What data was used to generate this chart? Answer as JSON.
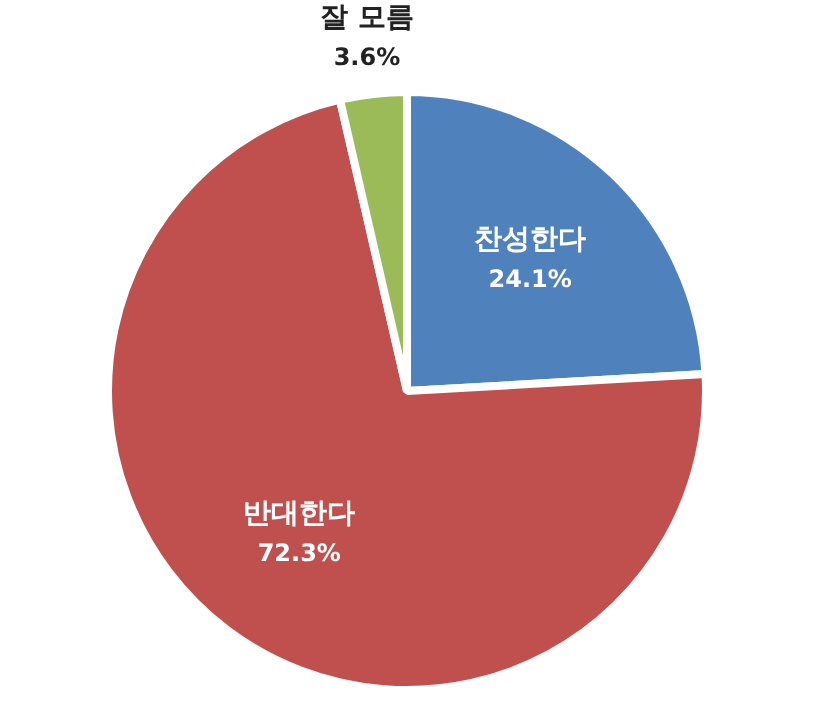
{
  "chart_data": {
    "type": "pie",
    "categories": [
      "찬성한다",
      "반대한다",
      "잘 모름"
    ],
    "values": [
      24.1,
      72.3,
      3.6
    ],
    "colors": [
      "#4f81bd",
      "#c0504d",
      "#9bbb59"
    ],
    "value_labels": [
      "24.1%",
      "72.3%",
      "3.6%"
    ],
    "legend": false
  }
}
